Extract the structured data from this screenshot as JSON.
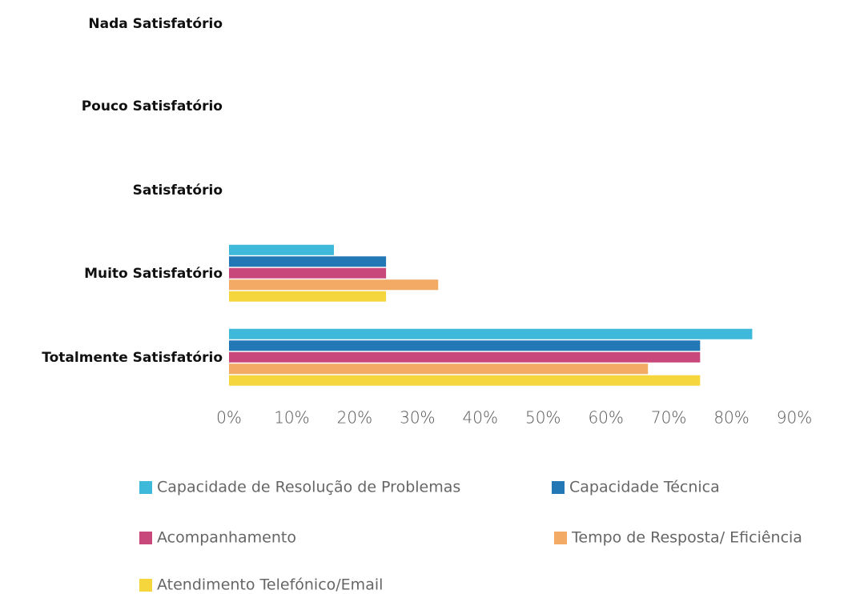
{
  "chart_data": {
    "type": "hbar",
    "categories": [
      "Nada Satisfatório",
      "Pouco Satisfatório",
      "Satisfatório",
      "Muito Satisfatório",
      "Totalmente Satisfatório"
    ],
    "series": [
      {
        "name": "Capacidade de Resolução de Problemas",
        "color": "#3fb9da",
        "values": [
          0,
          0,
          0,
          16.7,
          83.3
        ]
      },
      {
        "name": "Capacidade Técnica",
        "color": "#2277b5",
        "values": [
          0,
          0,
          0,
          25,
          75
        ]
      },
      {
        "name": "Acompanhamento",
        "color": "#c9487b",
        "values": [
          0,
          0,
          0,
          25,
          75
        ]
      },
      {
        "name": "Tempo de Resposta/ Eficiência",
        "color": "#f2aa65",
        "values": [
          0,
          0,
          0,
          33.3,
          66.7
        ]
      },
      {
        "name": "Atendimento Telefónico/Email",
        "color": "#f5d63c",
        "values": [
          0,
          0,
          0,
          25,
          75
        ]
      }
    ],
    "xlim": [
      0,
      90
    ],
    "xticks": [
      {
        "value": 0,
        "label": "0%"
      },
      {
        "value": 10,
        "label": "10%"
      },
      {
        "value": 20,
        "label": "20%"
      },
      {
        "value": 30,
        "label": "30%"
      },
      {
        "value": 40,
        "label": "40%"
      },
      {
        "value": 50,
        "label": "50%"
      },
      {
        "value": 60,
        "label": "60%"
      },
      {
        "value": 70,
        "label": "70%"
      },
      {
        "value": 80,
        "label": "80%"
      },
      {
        "value": 90,
        "label": "90%"
      }
    ],
    "grid": false,
    "legend": "bottom"
  }
}
